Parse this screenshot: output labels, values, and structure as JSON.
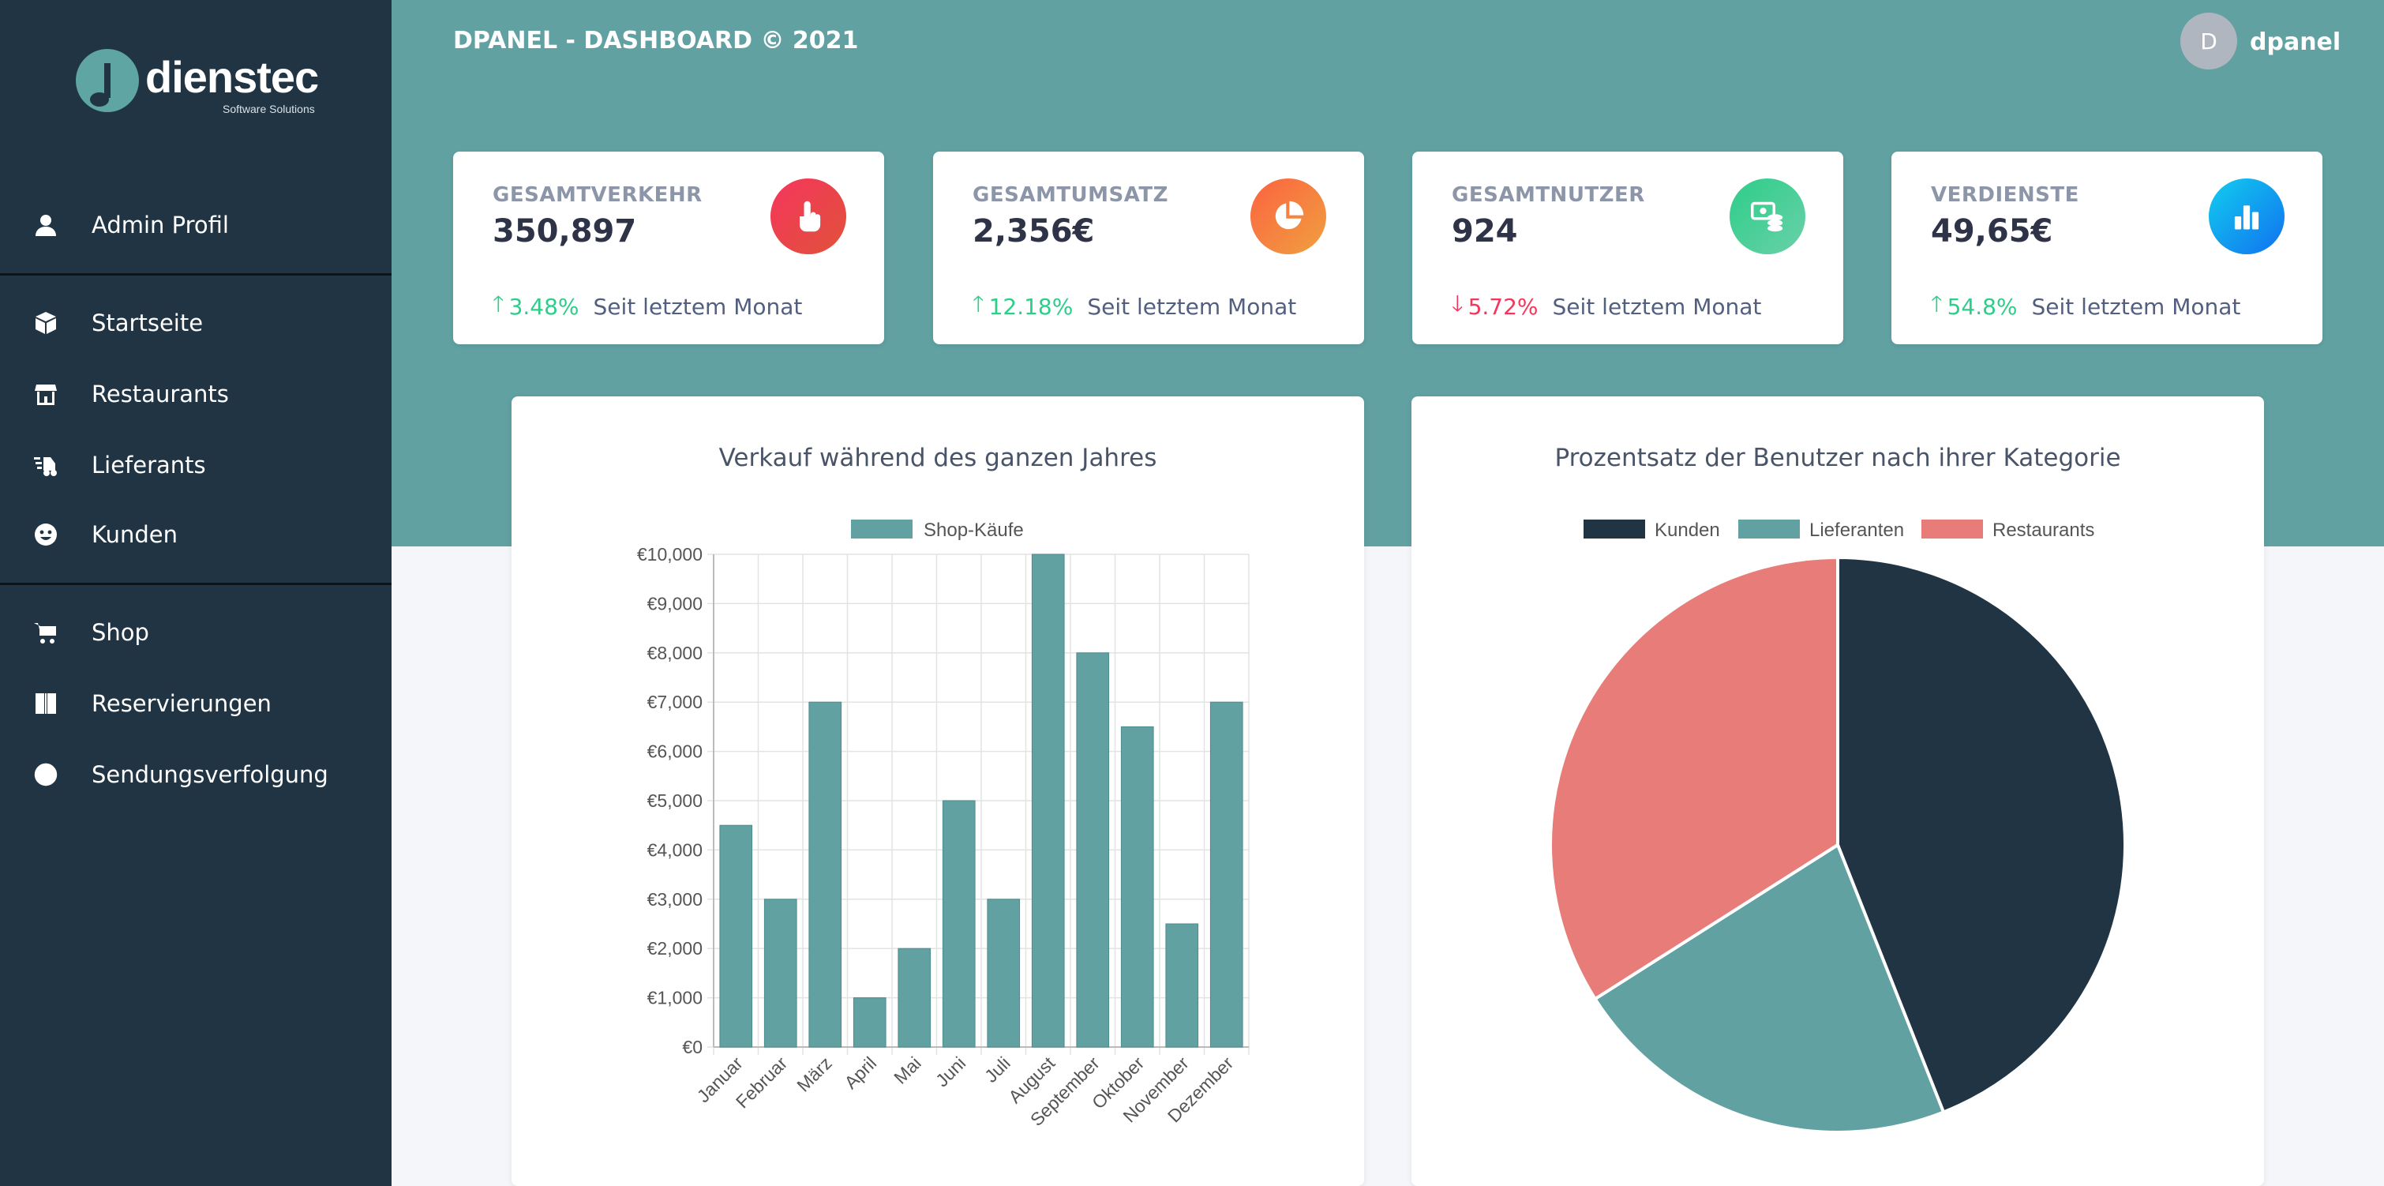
{
  "header": {
    "title": "DPANEL - DASHBOARD © 2021",
    "avatar_letter": "D",
    "username": "dpanel"
  },
  "logo": {
    "name": "dienstec",
    "tagline": "Software Solutions"
  },
  "sidebar": {
    "items": [
      {
        "label": "Admin Profil",
        "icon": "user-icon"
      },
      {
        "label": "Startseite",
        "icon": "cube-icon"
      },
      {
        "label": "Restaurants",
        "icon": "store-icon"
      },
      {
        "label": "Lieferants",
        "icon": "delivery-icon"
      },
      {
        "label": "Kunden",
        "icon": "smile-icon"
      },
      {
        "label": "Shop",
        "icon": "cart-icon"
      },
      {
        "label": "Reservierungen",
        "icon": "book-icon"
      },
      {
        "label": "Sendungsverfolgung",
        "icon": "globe-icon"
      }
    ]
  },
  "stats": [
    {
      "title": "GESAMTVERKEHR",
      "value": "350,897",
      "change": "3.48%",
      "direction": "up",
      "note": "Seit letztem Monat",
      "icon": "hand-pointer-icon",
      "color": "#e8444d"
    },
    {
      "title": "GESAMTUMSATZ",
      "value": "2,356€",
      "change": "12.18%",
      "direction": "up",
      "note": "Seit letztem Monat",
      "icon": "pie-chart-icon",
      "color": "#f0803a"
    },
    {
      "title": "GESAMTNUTZER",
      "value": "924",
      "change": "5.72%",
      "direction": "down",
      "note": "Seit letztem Monat",
      "icon": "money-stack-icon",
      "color": "#45c48e"
    },
    {
      "title": "VERDIENSTE",
      "value": "49,65€",
      "change": "54.8%",
      "direction": "up",
      "note": "Seit letztem Monat",
      "icon": "bar-chart-icon",
      "color": "#1f8ef1"
    }
  ],
  "colors": {
    "teal": "#61a1a2",
    "navy": "#203444",
    "coral": "#e77c78",
    "up": "#2dce89",
    "down": "#f5365c"
  },
  "chart_data": [
    {
      "type": "bar",
      "title": "Verkauf während des ganzen Jahres",
      "categories": [
        "Januar",
        "Februar",
        "März",
        "April",
        "Mai",
        "Juni",
        "Juli",
        "August",
        "September",
        "Oktober",
        "November",
        "Dezember"
      ],
      "series": [
        {
          "name": "Shop-Käufe",
          "values": [
            4500,
            3000,
            7000,
            1000,
            2000,
            5000,
            3000,
            10000,
            8000,
            6500,
            2500,
            7000
          ],
          "color": "#61a1a2"
        }
      ],
      "ylim": [
        0,
        10000
      ],
      "yticks": [
        "€0",
        "€1,000",
        "€2,000",
        "€3,000",
        "€4,000",
        "€5,000",
        "€6,000",
        "€7,000",
        "€8,000",
        "€9,000",
        "€10,000"
      ],
      "grid": true,
      "legend": "top"
    },
    {
      "type": "pie",
      "title": "Prozentsatz der Benutzer nach ihrer Kategorie",
      "labels": [
        "Kunden",
        "Lieferanten",
        "Restaurants"
      ],
      "values": [
        44,
        22,
        34
      ],
      "colors": [
        "#203444",
        "#61a1a2",
        "#e77c78"
      ],
      "legend": "top"
    }
  ]
}
